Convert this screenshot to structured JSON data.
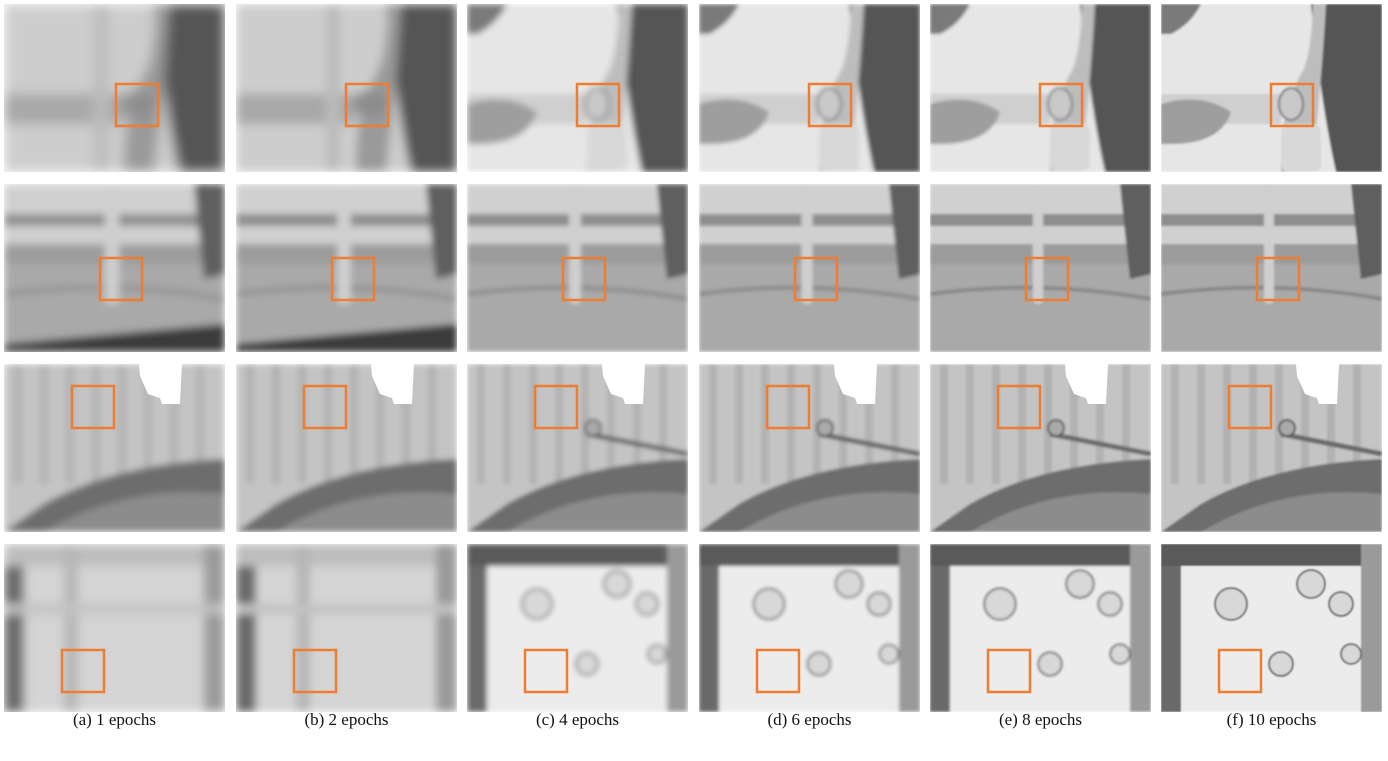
{
  "figure": {
    "highlight_color": "#ED7D31",
    "columns": [
      {
        "caption": "(a) 1 epochs",
        "epochs": 1
      },
      {
        "caption": "(b) 2 epochs",
        "epochs": 2
      },
      {
        "caption": "(c) 4 epochs",
        "epochs": 4
      },
      {
        "caption": "(d) 6 epochs",
        "epochs": 6
      },
      {
        "caption": "(e) 8 epochs",
        "epochs": 8
      },
      {
        "caption": "(f) 10 epochs",
        "epochs": 10
      }
    ],
    "row_count": 4,
    "panel_style": "grayscale 3D mesh renderings of indoor scene reconstructions with one orange highlight box per panel"
  }
}
